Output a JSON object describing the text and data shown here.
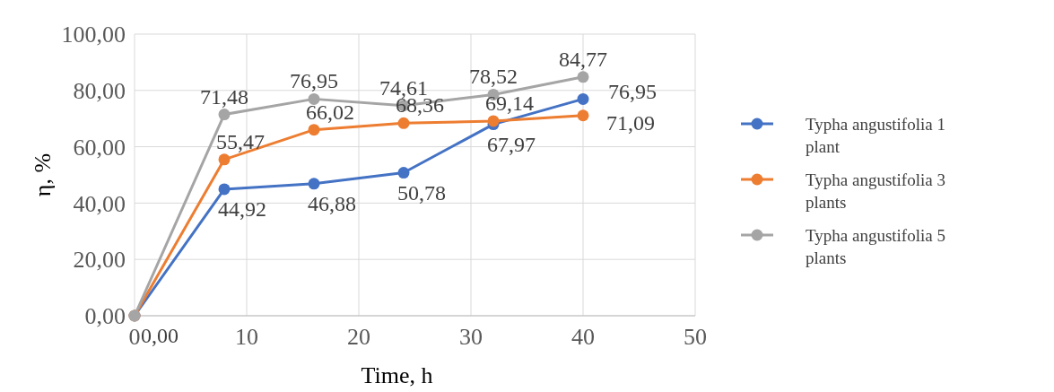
{
  "chart_data": {
    "type": "line",
    "xlabel": "Time, h",
    "ylabel": "η, %",
    "x": [
      0,
      8,
      16,
      24,
      32,
      40
    ],
    "xlim": [
      0,
      50
    ],
    "xticks": [
      0,
      10,
      20,
      30,
      40,
      50
    ],
    "ylim": [
      0,
      100
    ],
    "yticks": [
      {
        "value": 0,
        "label": "0,00"
      },
      {
        "value": 20,
        "label": "20,00"
      },
      {
        "value": 40,
        "label": "40,00"
      },
      {
        "value": 60,
        "label": "60,00"
      },
      {
        "value": 80,
        "label": "80,00"
      },
      {
        "value": 100,
        "label": "100,00"
      }
    ],
    "grid": true,
    "legend": "right",
    "marker": "circle",
    "line_style": "solid",
    "series": [
      {
        "name": "Typha angustifolia 1 plant",
        "color": "#4472c4",
        "values": [
          0,
          44.92,
          46.88,
          50.78,
          67.97,
          76.95
        ],
        "value_labels": [
          "0,00",
          "44,92",
          "46,88",
          "50,78",
          "67,97",
          "76,95"
        ]
      },
      {
        "name": "Typha angustifolia 3 plants",
        "color": "#ed7d31",
        "values": [
          0,
          55.47,
          66.02,
          68.36,
          69.14,
          71.09
        ],
        "value_labels": [
          null,
          "55,47",
          "66,02",
          "68,36",
          "69,14",
          "71,09"
        ]
      },
      {
        "name": "Typha angustifolia 5 plants",
        "color": "#a5a5a5",
        "values": [
          0,
          71.48,
          76.95,
          74.61,
          78.52,
          84.77
        ],
        "value_labels": [
          null,
          "71,48",
          "76,95",
          "74,61",
          "78,52",
          "84,77"
        ]
      }
    ]
  }
}
